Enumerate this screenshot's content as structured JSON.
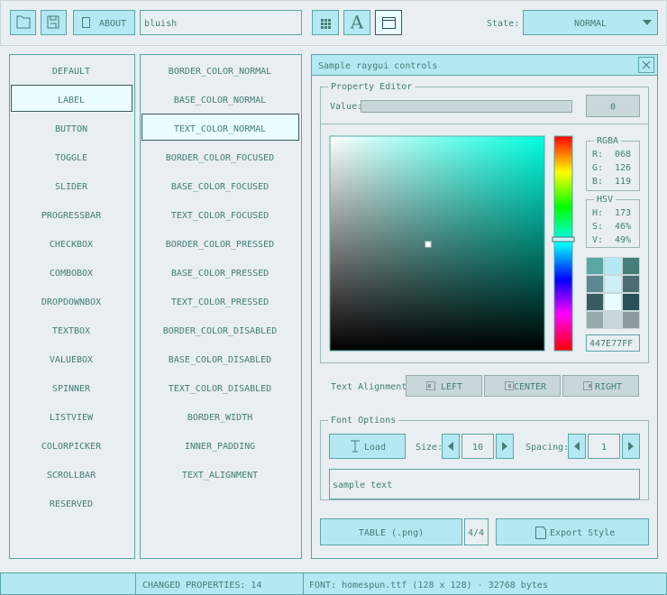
{
  "toolbar": {
    "about": "ABOUT",
    "style_name": "bluish",
    "font_icon": "A",
    "state_label": "State:",
    "state_value": "NORMAL"
  },
  "controls": {
    "items": [
      "DEFAULT",
      "LABEL",
      "BUTTON",
      "TOGGLE",
      "SLIDER",
      "PROGRESSBAR",
      "CHECKBOX",
      "COMBOBOX",
      "DROPDOWNBOX",
      "TEXTBOX",
      "VALUEBOX",
      "SPINNER",
      "LISTVIEW",
      "COLORPICKER",
      "SCROLLBAR",
      "RESERVED"
    ],
    "selected": 1
  },
  "properties": {
    "items": [
      "BORDER_COLOR_NORMAL",
      "BASE_COLOR_NORMAL",
      "TEXT_COLOR_NORMAL",
      "BORDER_COLOR_FOCUSED",
      "BASE_COLOR_FOCUSED",
      "TEXT_COLOR_FOCUSED",
      "BORDER_COLOR_PRESSED",
      "BASE_COLOR_PRESSED",
      "TEXT_COLOR_PRESSED",
      "BORDER_COLOR_DISABLED",
      "BASE_COLOR_DISABLED",
      "TEXT_COLOR_DISABLED",
      "BORDER_WIDTH",
      "INNER_PADDING",
      "TEXT_ALIGNMENT"
    ],
    "selected": 2
  },
  "window": {
    "title": "Sample raygui controls",
    "property_editor": {
      "title": "Property Editor",
      "value_label": "Value:",
      "value_button": "0"
    },
    "color_picker": {
      "rgba_title": "RGBA",
      "rgba": [
        {
          "label": "R:",
          "value": "068"
        },
        {
          "label": "G:",
          "value": "126"
        },
        {
          "label": "B:",
          "value": "119"
        }
      ],
      "hsv_title": "HSV",
      "hsv": [
        {
          "label": "H:",
          "value": "173"
        },
        {
          "label": "S:",
          "value": "46%"
        },
        {
          "label": "V:",
          "value": "49%"
        }
      ],
      "hex": "447E77FF"
    },
    "text_alignment": {
      "label": "Text Alignment:",
      "buttons": [
        "LEFT",
        "CENTER",
        "RIGHT"
      ]
    },
    "font_options": {
      "title": "Font Options",
      "load": "Load",
      "size_label": "Size:",
      "size_value": "10",
      "spacing_label": "Spacing:",
      "spacing_value": "1",
      "sample_text": "sample text"
    },
    "footer": {
      "table": "TABLE (.png)",
      "page": "4/4",
      "export": "Export Style"
    }
  },
  "status_bar": [
    "CHANGED PROPERTIES: 14",
    "FONT: homespun.ttf (128 x 128) - 32768 bytes"
  ]
}
